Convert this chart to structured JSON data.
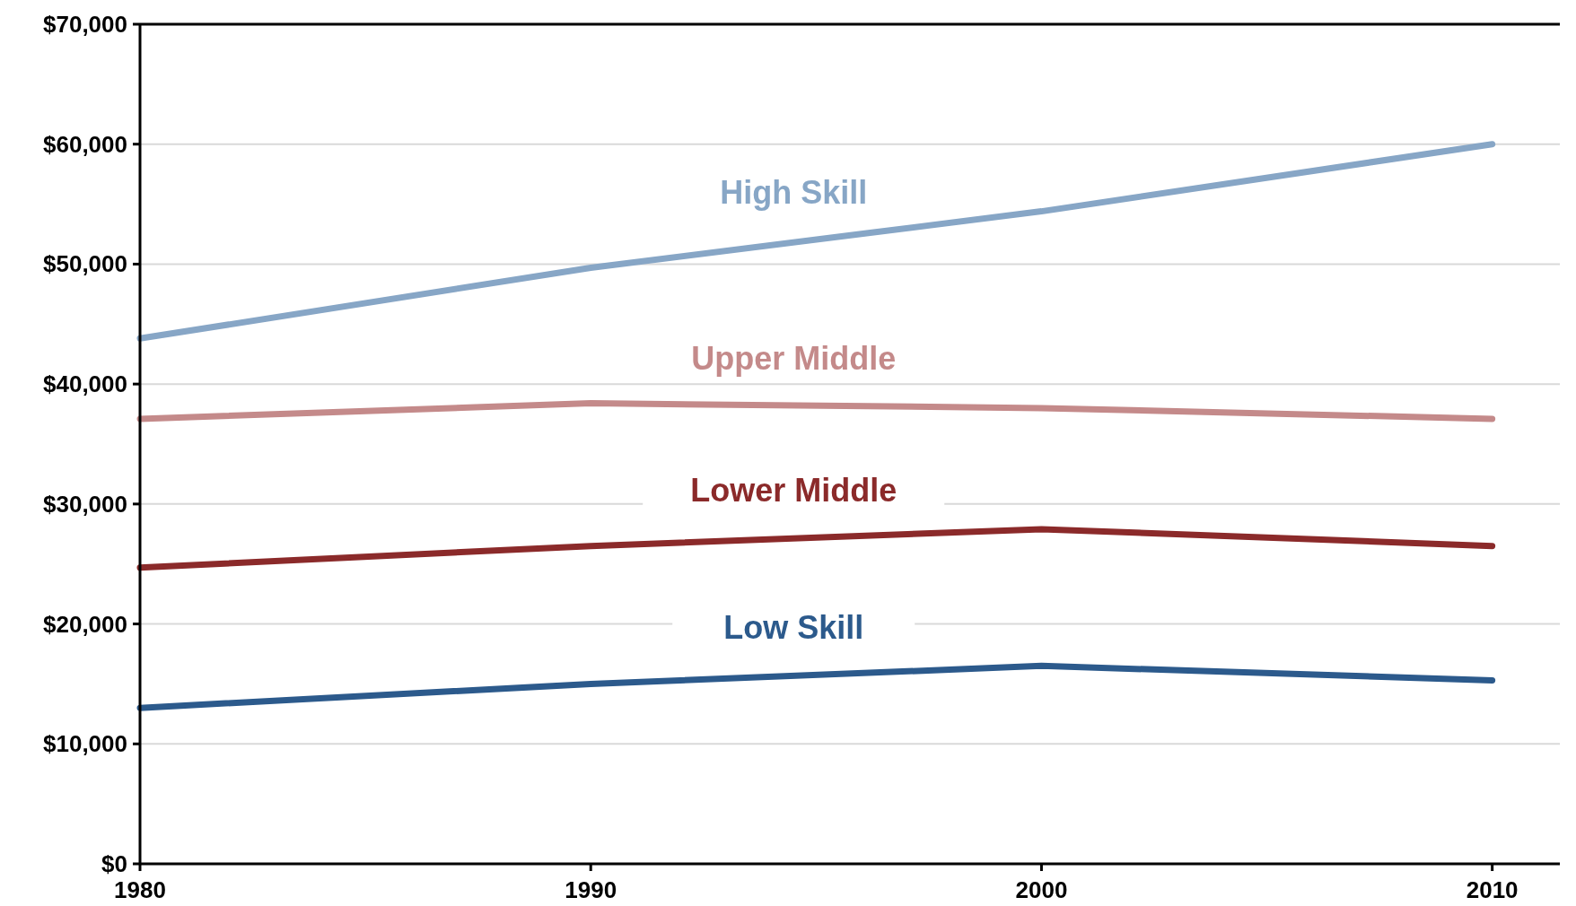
{
  "chart_data": {
    "type": "line",
    "x": [
      1980,
      1990,
      2000,
      2010
    ],
    "xlim": [
      1980,
      2011.5
    ],
    "xticks": [
      1980,
      1990,
      2000,
      2010
    ],
    "ylim": [
      0,
      70000
    ],
    "yticks": [
      {
        "value": 0,
        "label": "$0"
      },
      {
        "value": 10000,
        "label": "$10,000"
      },
      {
        "value": 20000,
        "label": "$20,000"
      },
      {
        "value": 30000,
        "label": "$30,000"
      },
      {
        "value": 40000,
        "label": "$40,000"
      },
      {
        "value": 50000,
        "label": "$50,000"
      },
      {
        "value": 60000,
        "label": "$60,000"
      },
      {
        "value": 70000,
        "label": "$70,000"
      }
    ],
    "grid": "y",
    "marker": "none",
    "line_style": "solid",
    "series": [
      {
        "name": "High Skill",
        "color": "#87a6c6",
        "values": [
          43800,
          49700,
          54400,
          60000
        ]
      },
      {
        "name": "Upper Middle",
        "color": "#c48a8a",
        "values": [
          37100,
          38400,
          38000,
          37100
        ]
      },
      {
        "name": "Lower Middle",
        "color": "#8b2a2a",
        "values": [
          24700,
          26500,
          27900,
          26500
        ]
      },
      {
        "name": "Low Skill",
        "color": "#2c5a8c",
        "values": [
          13000,
          15000,
          16500,
          15300
        ]
      }
    ]
  }
}
